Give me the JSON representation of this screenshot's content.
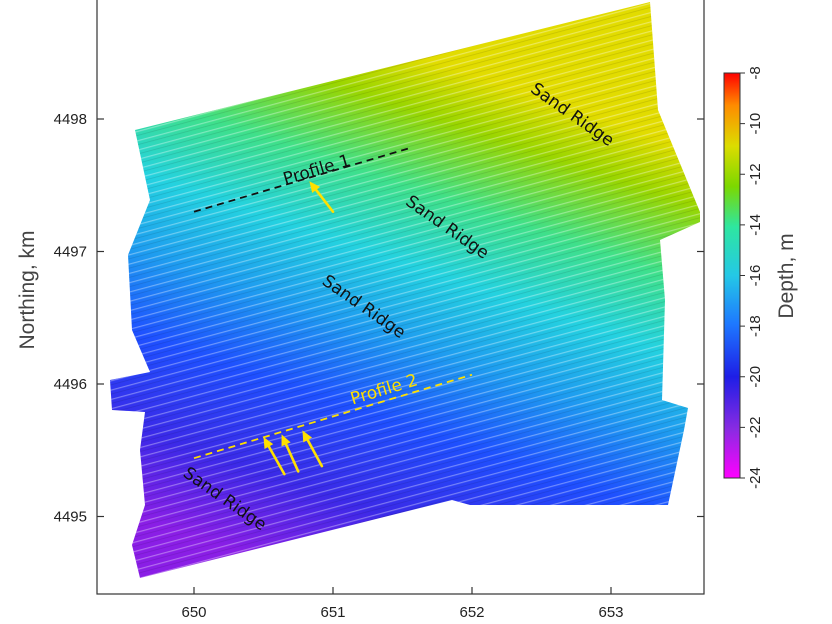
{
  "figure": {
    "y_axis_label": "Northing, km",
    "colorbar_label": "Depth, m"
  },
  "chart_data": {
    "type": "heatmap",
    "x_ticks": [
      650,
      651,
      652,
      653
    ],
    "y_ticks": [
      4495,
      4496,
      4497,
      4498
    ],
    "xlim": [
      649.3,
      653.7
    ],
    "ylim": [
      4494.4,
      4498.9
    ],
    "xlabel": "",
    "ylabel": "Northing, km",
    "colorbar": {
      "label": "Depth, m",
      "range": [
        -24,
        -8
      ],
      "ticks": [
        -8,
        -10,
        -12,
        -14,
        -16,
        -18,
        -20,
        -22,
        -24
      ],
      "colors": [
        "#ff00ff",
        "#8a2be2",
        "#1e1ee6",
        "#1e78ff",
        "#24c8e6",
        "#2ee6a0",
        "#7cd800",
        "#dcdc00",
        "#ff8c00",
        "#ff0000"
      ]
    },
    "annotations": [
      {
        "text": "Sand Ridge",
        "x": 652.7,
        "y": 4498.0
      },
      {
        "text": "Sand Ridge",
        "x": 651.8,
        "y": 4497.15
      },
      {
        "text": "Sand Ridge",
        "x": 651.2,
        "y": 4496.55
      },
      {
        "text": "Sand Ridge",
        "x": 650.2,
        "y": 4495.1
      }
    ],
    "profiles": [
      {
        "name": "Profile 1",
        "start": [
          650.0,
          4497.3
        ],
        "end": [
          651.55,
          4497.78
        ],
        "color": "#111111"
      },
      {
        "name": "Profile 2",
        "start": [
          650.0,
          4495.44
        ],
        "end": [
          652.0,
          4496.07
        ],
        "color": "#ffe000"
      }
    ],
    "arrows": [
      {
        "tail": [
          651.0,
          4497.3
        ],
        "head": [
          650.83,
          4497.53
        ],
        "color": "#ffe000"
      },
      {
        "tail": [
          650.65,
          4495.32
        ],
        "head": [
          650.5,
          4495.6
        ],
        "color": "#ffe000"
      },
      {
        "tail": [
          650.75,
          4495.34
        ],
        "head": [
          650.63,
          4495.62
        ],
        "color": "#ffe000"
      },
      {
        "tail": [
          650.92,
          4495.38
        ],
        "head": [
          650.78,
          4495.65
        ],
        "color": "#ffe000"
      }
    ]
  }
}
